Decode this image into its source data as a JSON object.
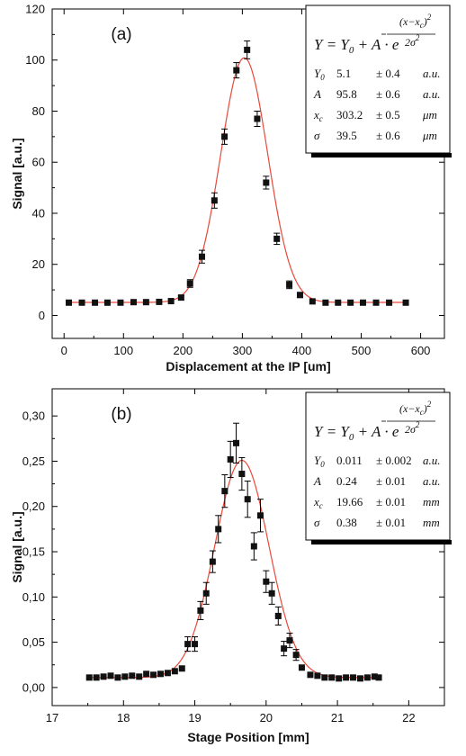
{
  "chart_data": [
    {
      "type": "scatter",
      "panel_label": "(a)",
      "xlabel": "Displacement at the IP [um]",
      "ylabel": "Signal [a.u.]",
      "xlim": [
        -20,
        640
      ],
      "ylim": [
        -9,
        120
      ],
      "xticks": [
        "0",
        "100",
        "200",
        "300",
        "400",
        "500",
        "600"
      ],
      "yticks": [
        "0",
        "20",
        "40",
        "60",
        "80",
        "100",
        "120"
      ],
      "legend_position": "top-right",
      "grid": false,
      "fit": {
        "type": "gaussian",
        "Y0": 5.1,
        "A": 95.8,
        "xc": 303.2,
        "sigma": 39.5
      },
      "equation": {
        "lhs": "Y = Y",
        "sub0": "0",
        "mid": " + A · e",
        "exp_num": "(x−x",
        "exp_sub": "c",
        "exp_close": ")",
        "exp_sq": "2",
        "exp_den": "2σ",
        "exp_den_sq": "2"
      },
      "params": [
        {
          "sym": "Y",
          "sub": "0",
          "value": "5.1",
          "err": "± 0.4",
          "unit": "a.u."
        },
        {
          "sym": "A",
          "sub": "",
          "value": "95.8",
          "err": "± 0.6",
          "unit": "a.u."
        },
        {
          "sym": "x",
          "sub": "c",
          "value": "303.2",
          "err": "± 0.5",
          "unit": "μm"
        },
        {
          "sym": "σ",
          "sub": "",
          "value": "39.5",
          "err": "± 0.6",
          "unit": "μm"
        }
      ],
      "points": [
        {
          "x": 8,
          "y": 5,
          "e": 0
        },
        {
          "x": 30,
          "y": 5,
          "e": 0
        },
        {
          "x": 52,
          "y": 5,
          "e": 0
        },
        {
          "x": 73,
          "y": 5,
          "e": 0
        },
        {
          "x": 95,
          "y": 5,
          "e": 0
        },
        {
          "x": 117,
          "y": 5.2,
          "e": 0
        },
        {
          "x": 138,
          "y": 5.2,
          "e": 0
        },
        {
          "x": 160,
          "y": 5.3,
          "e": 0
        },
        {
          "x": 180,
          "y": 5.6,
          "e": 0
        },
        {
          "x": 197,
          "y": 7,
          "e": 0.8
        },
        {
          "x": 212,
          "y": 12.5,
          "e": 1.5
        },
        {
          "x": 232,
          "y": 23,
          "e": 2.5
        },
        {
          "x": 253,
          "y": 45,
          "e": 3
        },
        {
          "x": 270,
          "y": 70,
          "e": 3
        },
        {
          "x": 290,
          "y": 96,
          "e": 3
        },
        {
          "x": 308,
          "y": 104,
          "e": 3.5
        },
        {
          "x": 325,
          "y": 77,
          "e": 3
        },
        {
          "x": 340,
          "y": 52,
          "e": 2.5
        },
        {
          "x": 358,
          "y": 30,
          "e": 2.2
        },
        {
          "x": 379,
          "y": 12,
          "e": 1.5
        },
        {
          "x": 397,
          "y": 8,
          "e": 1
        },
        {
          "x": 418,
          "y": 5.5,
          "e": 0
        },
        {
          "x": 440,
          "y": 5,
          "e": 0
        },
        {
          "x": 461,
          "y": 5,
          "e": 0
        },
        {
          "x": 482,
          "y": 5,
          "e": 0
        },
        {
          "x": 503,
          "y": 5,
          "e": 0
        },
        {
          "x": 525,
          "y": 5,
          "e": 0
        },
        {
          "x": 547,
          "y": 5,
          "e": 0
        },
        {
          "x": 575,
          "y": 5,
          "e": 0
        }
      ]
    },
    {
      "type": "scatter",
      "panel_label": "(b)",
      "xlabel": "Stage Position [mm]",
      "ylabel": "Signal [a.u.]",
      "xlim": [
        17,
        22.5
      ],
      "ylim": [
        -0.02,
        0.33
      ],
      "xticks": [
        "17",
        "18",
        "19",
        "20",
        "21",
        "22"
      ],
      "yticks": [
        "0,00",
        "0,05",
        "0,10",
        "0,15",
        "0,20",
        "0,25",
        "0,30"
      ],
      "legend_position": "top-right",
      "grid": false,
      "fit": {
        "type": "gaussian",
        "Y0": 0.011,
        "A": 0.24,
        "xc": 19.66,
        "sigma": 0.38
      },
      "equation": {
        "lhs": "Y = Y",
        "sub0": "0",
        "mid": " + A · e",
        "exp_num": "(x−x",
        "exp_sub": "c",
        "exp_close": ")",
        "exp_sq": "2",
        "exp_den": "2σ",
        "exp_den_sq": "2"
      },
      "params": [
        {
          "sym": "Y",
          "sub": "0",
          "value": "0.011",
          "err": "± 0.002",
          "unit": "a.u."
        },
        {
          "sym": "A",
          "sub": "",
          "value": "0.24",
          "err": "± 0.01",
          "unit": "a.u."
        },
        {
          "sym": "x",
          "sub": "c",
          "value": "19.66",
          "err": "± 0.01",
          "unit": "mm"
        },
        {
          "sym": "σ",
          "sub": "",
          "value": "0.38",
          "err": "± 0.01",
          "unit": "mm"
        }
      ],
      "points": [
        {
          "x": 17.52,
          "y": 0.011,
          "e": 0
        },
        {
          "x": 17.62,
          "y": 0.011,
          "e": 0
        },
        {
          "x": 17.72,
          "y": 0.012,
          "e": 0
        },
        {
          "x": 17.82,
          "y": 0.013,
          "e": 0
        },
        {
          "x": 17.92,
          "y": 0.011,
          "e": 0
        },
        {
          "x": 18.02,
          "y": 0.012,
          "e": 0
        },
        {
          "x": 18.12,
          "y": 0.013,
          "e": 0
        },
        {
          "x": 18.22,
          "y": 0.012,
          "e": 0
        },
        {
          "x": 18.32,
          "y": 0.015,
          "e": 0
        },
        {
          "x": 18.42,
          "y": 0.014,
          "e": 0
        },
        {
          "x": 18.52,
          "y": 0.015,
          "e": 0
        },
        {
          "x": 18.62,
          "y": 0.016,
          "e": 0
        },
        {
          "x": 18.72,
          "y": 0.018,
          "e": 0
        },
        {
          "x": 18.82,
          "y": 0.021,
          "e": 0
        },
        {
          "x": 18.9,
          "y": 0.048,
          "e": 0.008
        },
        {
          "x": 19.0,
          "y": 0.048,
          "e": 0.008
        },
        {
          "x": 19.08,
          "y": 0.085,
          "e": 0.01
        },
        {
          "x": 19.16,
          "y": 0.104,
          "e": 0.012
        },
        {
          "x": 19.25,
          "y": 0.139,
          "e": 0.012
        },
        {
          "x": 19.33,
          "y": 0.175,
          "e": 0.015
        },
        {
          "x": 19.42,
          "y": 0.217,
          "e": 0.018
        },
        {
          "x": 19.5,
          "y": 0.252,
          "e": 0.02
        },
        {
          "x": 19.58,
          "y": 0.27,
          "e": 0.022
        },
        {
          "x": 19.66,
          "y": 0.236,
          "e": 0.018
        },
        {
          "x": 19.74,
          "y": 0.208,
          "e": 0.02
        },
        {
          "x": 19.83,
          "y": 0.156,
          "e": 0.015
        },
        {
          "x": 19.92,
          "y": 0.19,
          "e": 0.018
        },
        {
          "x": 20.0,
          "y": 0.117,
          "e": 0.012
        },
        {
          "x": 20.08,
          "y": 0.104,
          "e": 0.012
        },
        {
          "x": 20.17,
          "y": 0.079,
          "e": 0.01
        },
        {
          "x": 20.25,
          "y": 0.043,
          "e": 0.008
        },
        {
          "x": 20.33,
          "y": 0.052,
          "e": 0.008
        },
        {
          "x": 20.42,
          "y": 0.036,
          "e": 0.006
        },
        {
          "x": 20.5,
          "y": 0.022,
          "e": 0
        },
        {
          "x": 20.62,
          "y": 0.014,
          "e": 0
        },
        {
          "x": 20.72,
          "y": 0.013,
          "e": 0
        },
        {
          "x": 20.82,
          "y": 0.011,
          "e": 0
        },
        {
          "x": 20.92,
          "y": 0.011,
          "e": 0
        },
        {
          "x": 21.02,
          "y": 0.01,
          "e": 0
        },
        {
          "x": 21.12,
          "y": 0.011,
          "e": 0
        },
        {
          "x": 21.22,
          "y": 0.011,
          "e": 0
        },
        {
          "x": 21.32,
          "y": 0.01,
          "e": 0
        },
        {
          "x": 21.42,
          "y": 0.011,
          "e": 0
        },
        {
          "x": 21.52,
          "y": 0.012,
          "e": 0
        },
        {
          "x": 21.58,
          "y": 0.011,
          "e": 0
        }
      ]
    }
  ]
}
